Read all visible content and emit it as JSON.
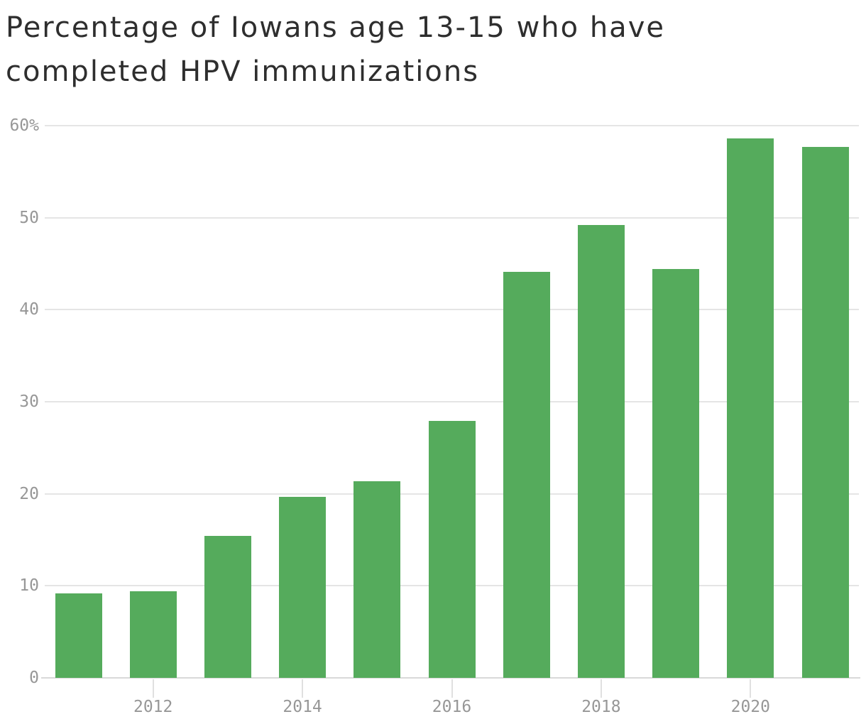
{
  "header": {
    "title_lines": [
      "Percentage of Iowans age 13-15 who have",
      "completed HPV immunizations"
    ]
  },
  "colors": {
    "bar": "#55ab5c",
    "grid": "#e5e5e5",
    "zero_line": "#d9d9d9",
    "tick": "#e0e0e0",
    "axis_label": "#979797",
    "title": "#2e2e2e",
    "background": "#ffffff"
  },
  "chart_data": {
    "type": "bar",
    "title": "Percentage of Iowans age 13-15 who have completed HPV immunizations",
    "categories": [
      "2011",
      "2012",
      "2013",
      "2014",
      "2015",
      "2016",
      "2017",
      "2018",
      "2019",
      "2020",
      "2021"
    ],
    "values": [
      9.2,
      9.4,
      15.4,
      19.7,
      21.4,
      27.9,
      44.1,
      49.2,
      44.4,
      58.6,
      57.7
    ],
    "unit": "%",
    "xlabel": "",
    "ylabel": "",
    "ylim": [
      0,
      60
    ],
    "yticks": [
      0,
      10,
      20,
      30,
      40,
      50,
      60
    ],
    "ytick_labels": [
      "0",
      "10",
      "20",
      "30",
      "40",
      "50",
      "60%"
    ],
    "xtick_labels": [
      "2012",
      "2014",
      "2016",
      "2018",
      "2020"
    ],
    "grid": true,
    "legend": false,
    "bar_color": "#55ab5c"
  }
}
